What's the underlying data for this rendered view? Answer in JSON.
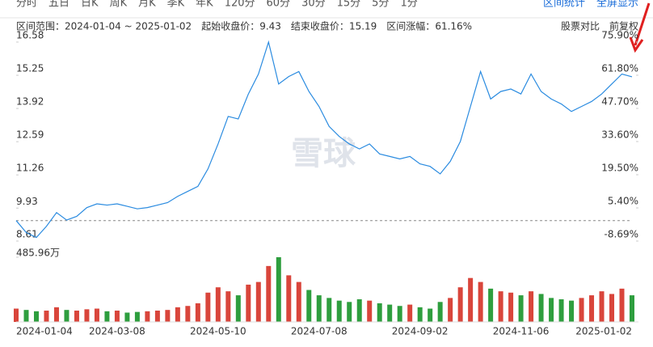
{
  "tabs": [
    "分时",
    "五日",
    "日K",
    "周K",
    "月K",
    "季K",
    "年K",
    "120分",
    "60分",
    "30分",
    "15分",
    "5分",
    "1分"
  ],
  "tools": [
    "区间统计",
    "全屏显示"
  ],
  "chart_data": {
    "type": "line",
    "info": [
      {
        "label": "区间范围：",
        "value": "2024-01-04 ~ 2025-01-02"
      },
      {
        "label": "起始收盘价：",
        "value": 9.43
      },
      {
        "label": "结束收盘价：",
        "value": 15.19
      },
      {
        "label": "区间涨幅：",
        "value": "61.16%"
      }
    ],
    "options": [
      "股票对比",
      "前复权"
    ],
    "watermark": "雪球",
    "categories": [
      "2024-01-04",
      null,
      null,
      null,
      null,
      null,
      null,
      null,
      null,
      null,
      "2024-03-08",
      null,
      null,
      null,
      null,
      null,
      null,
      null,
      null,
      null,
      "2024-05-10",
      null,
      null,
      null,
      null,
      null,
      null,
      null,
      null,
      null,
      "2024-07-08",
      null,
      null,
      null,
      null,
      null,
      null,
      null,
      null,
      null,
      "2024-09-02",
      null,
      null,
      null,
      null,
      null,
      null,
      null,
      null,
      null,
      "2024-11-06",
      null,
      null,
      null,
      null,
      null,
      null,
      null,
      null,
      null,
      null,
      "2025-01-02"
    ],
    "series": [
      {
        "color": "#2a8be0",
        "values": [
          9.43,
          8.95,
          8.75,
          9.2,
          9.75,
          9.45,
          9.6,
          9.95,
          10.1,
          10.05,
          10.1,
          10.0,
          9.9,
          9.95,
          10.05,
          10.15,
          10.4,
          10.6,
          10.8,
          11.5,
          12.5,
          13.6,
          13.5,
          14.5,
          15.3,
          16.58,
          14.9,
          15.2,
          15.4,
          14.6,
          14.0,
          13.2,
          12.8,
          12.5,
          12.3,
          12.5,
          12.1,
          12.0,
          11.9,
          12.0,
          11.7,
          11.6,
          11.3,
          11.8,
          12.6,
          14.0,
          15.4,
          14.3,
          14.6,
          14.7,
          14.5,
          15.3,
          14.6,
          14.3,
          14.1,
          13.8,
          14.0,
          14.2,
          14.5,
          14.9,
          15.3,
          15.19
        ]
      }
    ],
    "ylim": [
      8.61,
      16.58
    ],
    "yticks": [
      8.61,
      9.93,
      11.26,
      12.59,
      13.92,
      15.25,
      16.58
    ],
    "y2lim": [
      -8.69,
      75.9
    ],
    "y2ticks": [
      {
        "value": -8.69,
        "label": "-8.69%"
      },
      {
        "value": 5.4,
        "label": "5.40%"
      },
      {
        "value": 19.5,
        "label": "19.50%"
      },
      {
        "value": 33.6,
        "label": "33.60%"
      },
      {
        "value": 47.7,
        "label": "47.70%"
      },
      {
        "value": 61.8,
        "label": "61.80%"
      },
      {
        "value": 75.9,
        "label": "75.90%"
      }
    ],
    "volume": {
      "up_color": "#d9453b",
      "down_color": "#2e9e3e",
      "ylim": [
        0,
        485.96
      ],
      "yticks": [
        {
          "value": 485.96,
          "label": "485.96万"
        }
      ],
      "values": [
        100,
        90,
        80,
        85,
        110,
        90,
        85,
        95,
        100,
        80,
        85,
        70,
        75,
        80,
        85,
        90,
        110,
        120,
        140,
        220,
        260,
        230,
        200,
        280,
        300,
        420,
        485.96,
        350,
        300,
        240,
        200,
        180,
        160,
        150,
        170,
        160,
        140,
        130,
        120,
        130,
        110,
        100,
        150,
        180,
        260,
        330,
        300,
        250,
        230,
        220,
        200,
        230,
        210,
        180,
        170,
        160,
        180,
        200,
        230,
        210,
        250,
        200
      ]
    }
  }
}
